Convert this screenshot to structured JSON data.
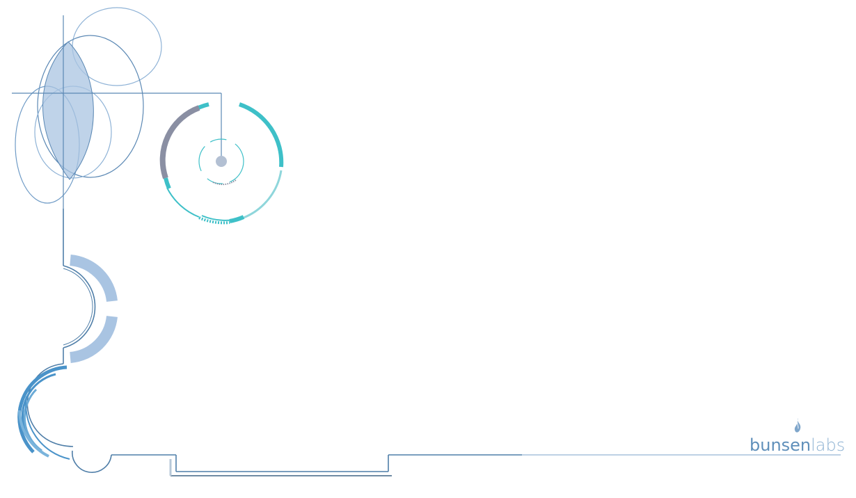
{
  "desktop": {
    "logo": {
      "brand_strong": "bunsen",
      "brand_light": "labs"
    }
  },
  "colors": {
    "line_blue": "#5b88b4",
    "fill_blue": "#a9c4e2",
    "teal": "#3ec0c8",
    "teal_light": "#8fd6db",
    "gray_arc": "#8a8fa3",
    "deep_blue": "#4a93c9"
  }
}
